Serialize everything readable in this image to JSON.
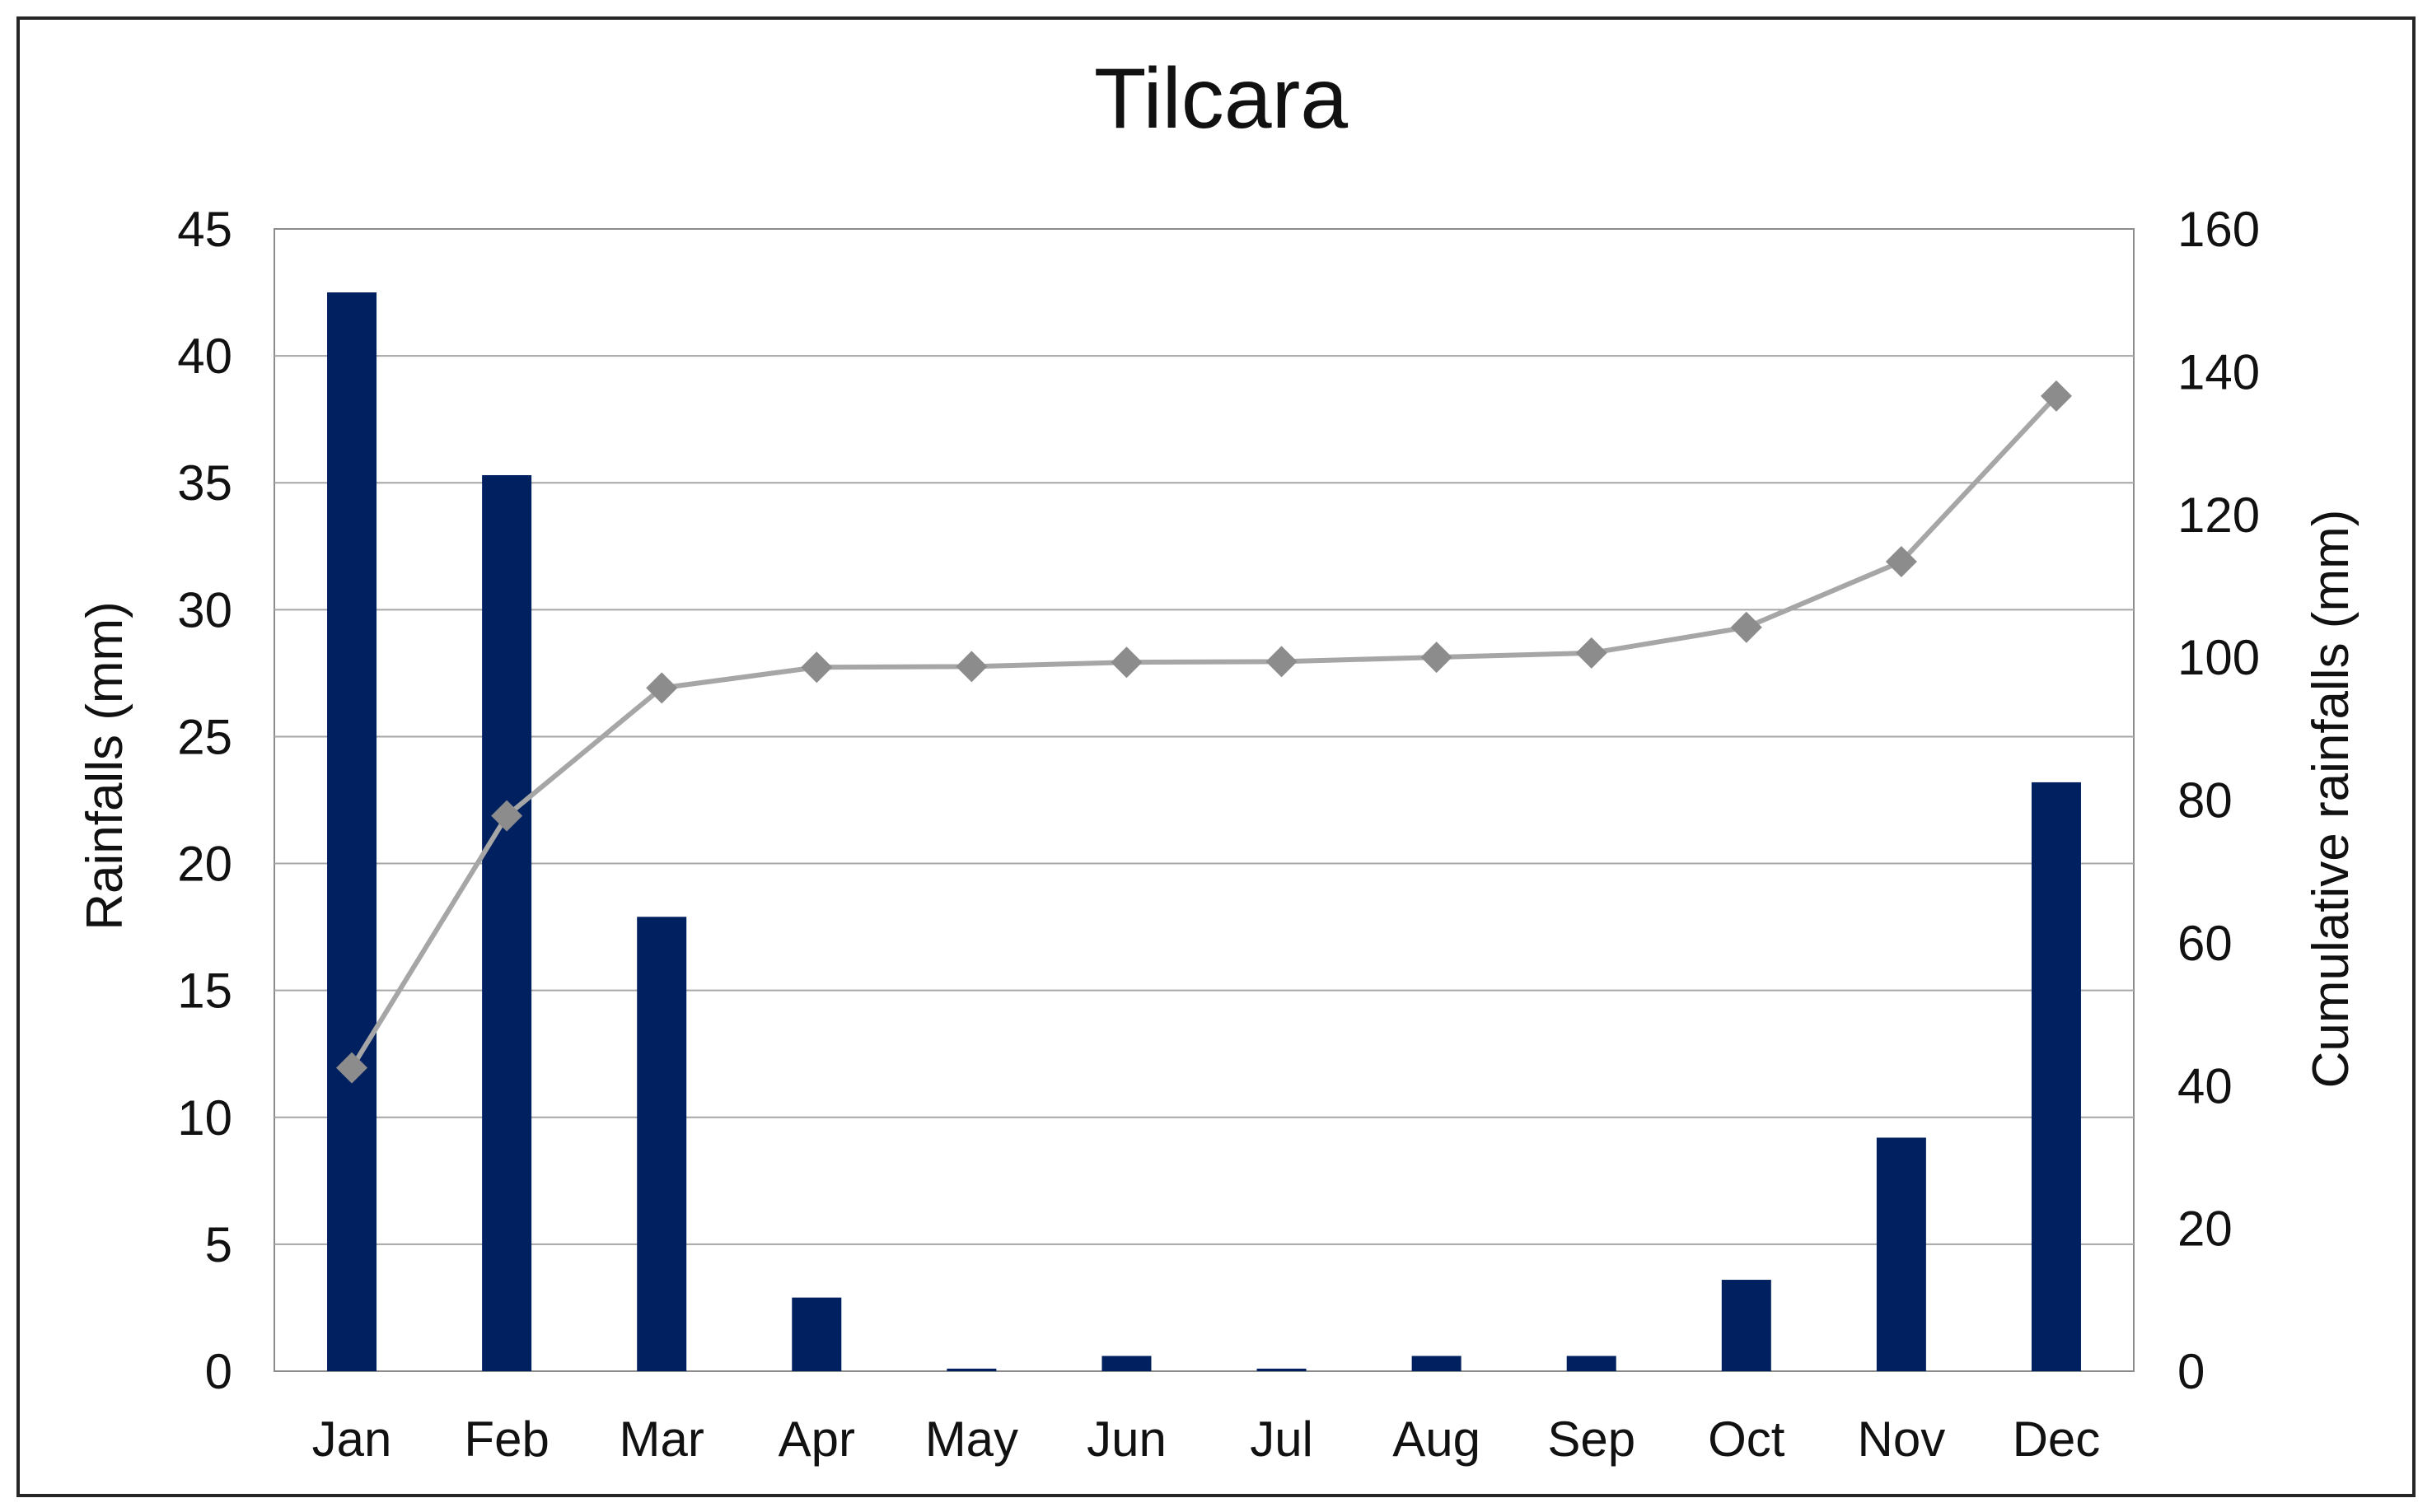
{
  "chart_data": {
    "type": "bar",
    "title": "Tilcara",
    "categories": [
      "Jan",
      "Feb",
      "Mar",
      "Apr",
      "May",
      "Jun",
      "Jul",
      "Aug",
      "Sep",
      "Oct",
      "Nov",
      "Dec"
    ],
    "series": [
      {
        "type": "bar",
        "axis": "left",
        "color": "#002060",
        "values": [
          42.5,
          35.3,
          17.9,
          2.9,
          0.1,
          0.6,
          0.1,
          0.6,
          0.6,
          3.6,
          9.2,
          23.2
        ]
      },
      {
        "type": "line",
        "axis": "right",
        "color": "#A6A6A6",
        "marker": "diamond",
        "values": [
          42.5,
          77.8,
          95.7,
          98.6,
          98.7,
          99.3,
          99.4,
          100.0,
          100.6,
          104.2,
          113.4,
          136.6
        ]
      }
    ],
    "y_left": {
      "label": "Rainfalls (mm)",
      "min": 0,
      "max": 45,
      "step": 5
    },
    "y_right": {
      "label": "Cumulative rainfalls (mm)",
      "min": 0,
      "max": 160,
      "step": 20
    },
    "grid": true,
    "legend": "none"
  }
}
